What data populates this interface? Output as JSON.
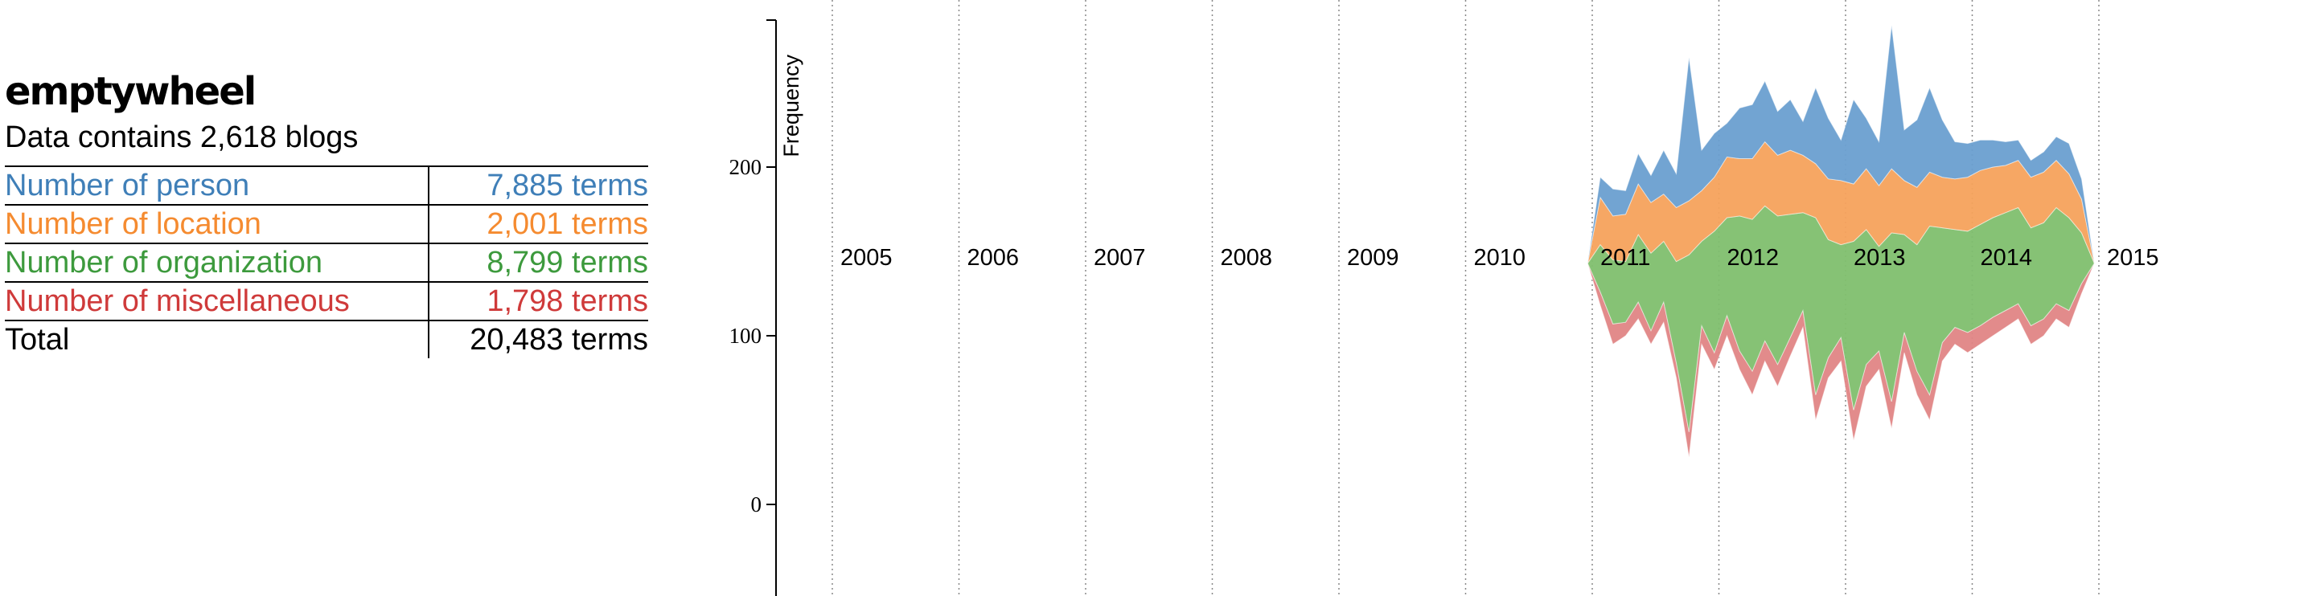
{
  "summary": {
    "blog_name": "emptywheel",
    "blog_count_text": "Data contains 2,618 blogs",
    "rows": [
      {
        "label": "Number of person",
        "value": "7,885 terms",
        "color": "#3f7fb8"
      },
      {
        "label": "Number of location",
        "value": "2,001 terms",
        "color": "#f58b30"
      },
      {
        "label": "Number of organization",
        "value": "8,799 terms",
        "color": "#3d9a3d"
      },
      {
        "label": "Number of miscellaneous",
        "value": "1,798 terms",
        "color": "#cf3a3a"
      }
    ],
    "total": {
      "label": "Total",
      "value": "20,483 terms"
    }
  },
  "chart_data": {
    "type": "area",
    "subtype": "streamgraph",
    "ylabel": "Frequency",
    "yticks": [
      0,
      100,
      200
    ],
    "ylim": [
      -40,
      290
    ],
    "xlim": [
      2004.0,
      2016.0
    ],
    "xticks": [
      "2005",
      "2006",
      "2007",
      "2008",
      "2009",
      "2010",
      "2011",
      "2012",
      "2013",
      "2014",
      "2015"
    ],
    "grid": "vertical dotted lines at each year",
    "x": [
      2010.9,
      2011.0,
      2011.1,
      2011.2,
      2011.3,
      2011.4,
      2011.5,
      2011.6,
      2011.7,
      2011.8,
      2011.9,
      2012.0,
      2012.1,
      2012.2,
      2012.3,
      2012.4,
      2012.5,
      2012.6,
      2012.7,
      2012.8,
      2012.9,
      2013.0,
      2013.1,
      2013.2,
      2013.3,
      2013.4,
      2013.5,
      2013.6,
      2013.7,
      2013.8,
      2013.9,
      2014.0,
      2014.1,
      2014.2,
      2014.3,
      2014.4,
      2014.5,
      2014.6,
      2014.7,
      2014.8,
      2014.9
    ],
    "baseline": [
      143,
      118,
      95,
      100,
      110,
      95,
      108,
      75,
      28,
      95,
      80,
      100,
      80,
      65,
      85,
      70,
      88,
      105,
      50,
      75,
      85,
      38,
      70,
      80,
      45,
      90,
      65,
      50,
      85,
      95,
      90,
      95,
      100,
      105,
      110,
      95,
      100,
      110,
      105,
      125,
      143
    ],
    "series": [
      {
        "name": "miscellaneous",
        "color": "#e08585",
        "values": [
          0,
          8,
          12,
          8,
          10,
          8,
          12,
          9,
          15,
          11,
          10,
          12,
          11,
          14,
          12,
          13,
          11,
          10,
          15,
          12,
          14,
          18,
          13,
          11,
          16,
          12,
          14,
          15,
          11,
          10,
          12,
          11,
          11,
          10,
          9,
          11,
          10,
          9,
          10,
          6,
          0
        ]
      },
      {
        "name": "organization",
        "color": "#7fbf6e",
        "values": [
          0,
          28,
          38,
          36,
          40,
          46,
          36,
          60,
          105,
          50,
          72,
          58,
          80,
          90,
          80,
          88,
          73,
          58,
          105,
          70,
          55,
          100,
          80,
          62,
          100,
          58,
          75,
          100,
          68,
          58,
          60,
          60,
          59,
          58,
          57,
          58,
          57,
          57,
          55,
          30,
          0
        ]
      },
      {
        "name": "location",
        "color": "#f5a25c",
        "values": [
          0,
          28,
          26,
          28,
          30,
          30,
          28,
          32,
          32,
          30,
          32,
          36,
          34,
          36,
          38,
          36,
          38,
          34,
          32,
          36,
          38,
          34,
          36,
          36,
          38,
          32,
          34,
          32,
          30,
          30,
          32,
          32,
          30,
          28,
          28,
          30,
          30,
          28,
          26,
          20,
          0
        ]
      },
      {
        "name": "person",
        "color": "#6a9fd0",
        "values": [
          0,
          12,
          16,
          14,
          18,
          16,
          26,
          20,
          85,
          24,
          26,
          20,
          30,
          32,
          36,
          26,
          30,
          20,
          45,
          36,
          24,
          50,
          30,
          26,
          85,
          30,
          40,
          50,
          34,
          22,
          20,
          18,
          16,
          14,
          12,
          10,
          12,
          14,
          18,
          12,
          0
        ]
      }
    ]
  }
}
